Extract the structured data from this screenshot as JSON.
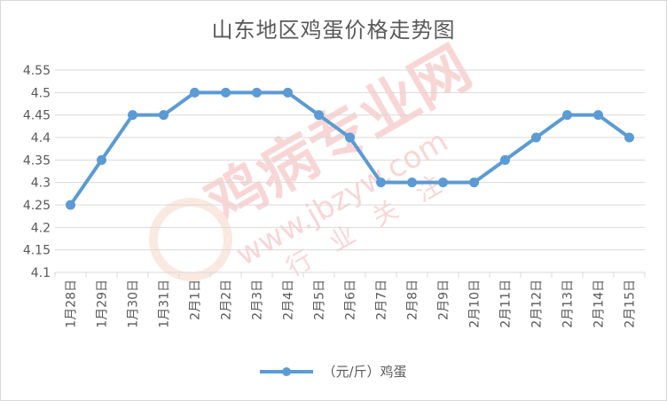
{
  "chart_data": {
    "type": "line",
    "title": "山东地区鸡蛋价格走势图",
    "categories": [
      "1月28日",
      "1月29日",
      "1月30日",
      "1月31日",
      "2月1日",
      "2月2日",
      "2月3日",
      "2月4日",
      "2月5日",
      "2月6日",
      "2月7日",
      "2月8日",
      "2月9日",
      "2月10日",
      "2月11日",
      "2月12日",
      "2月13日",
      "2月14日",
      "2月15日"
    ],
    "series": [
      {
        "name": "（元/斤）鸡蛋",
        "values": [
          4.25,
          4.35,
          4.45,
          4.45,
          4.5,
          4.5,
          4.5,
          4.5,
          4.45,
          4.4,
          4.3,
          4.3,
          4.3,
          4.3,
          4.35,
          4.4,
          4.45,
          4.45,
          4.4
        ],
        "color": "#5b9bd5"
      }
    ],
    "yticks": [
      "4.1",
      "4.15",
      "4.2",
      "4.25",
      "4.3",
      "4.35",
      "4.4",
      "4.45",
      "4.5",
      "4.55"
    ],
    "ylim": [
      4.1,
      4.55
    ],
    "grid": true,
    "legend_position": "bottom"
  },
  "colors": {
    "grid": "#d9d9d9",
    "text": "#595959",
    "watermark": "#f2b8b8"
  },
  "watermark": {
    "brand": "鸡病专业网",
    "url": "www.jbzyw.com",
    "slogan": "行业关注"
  }
}
